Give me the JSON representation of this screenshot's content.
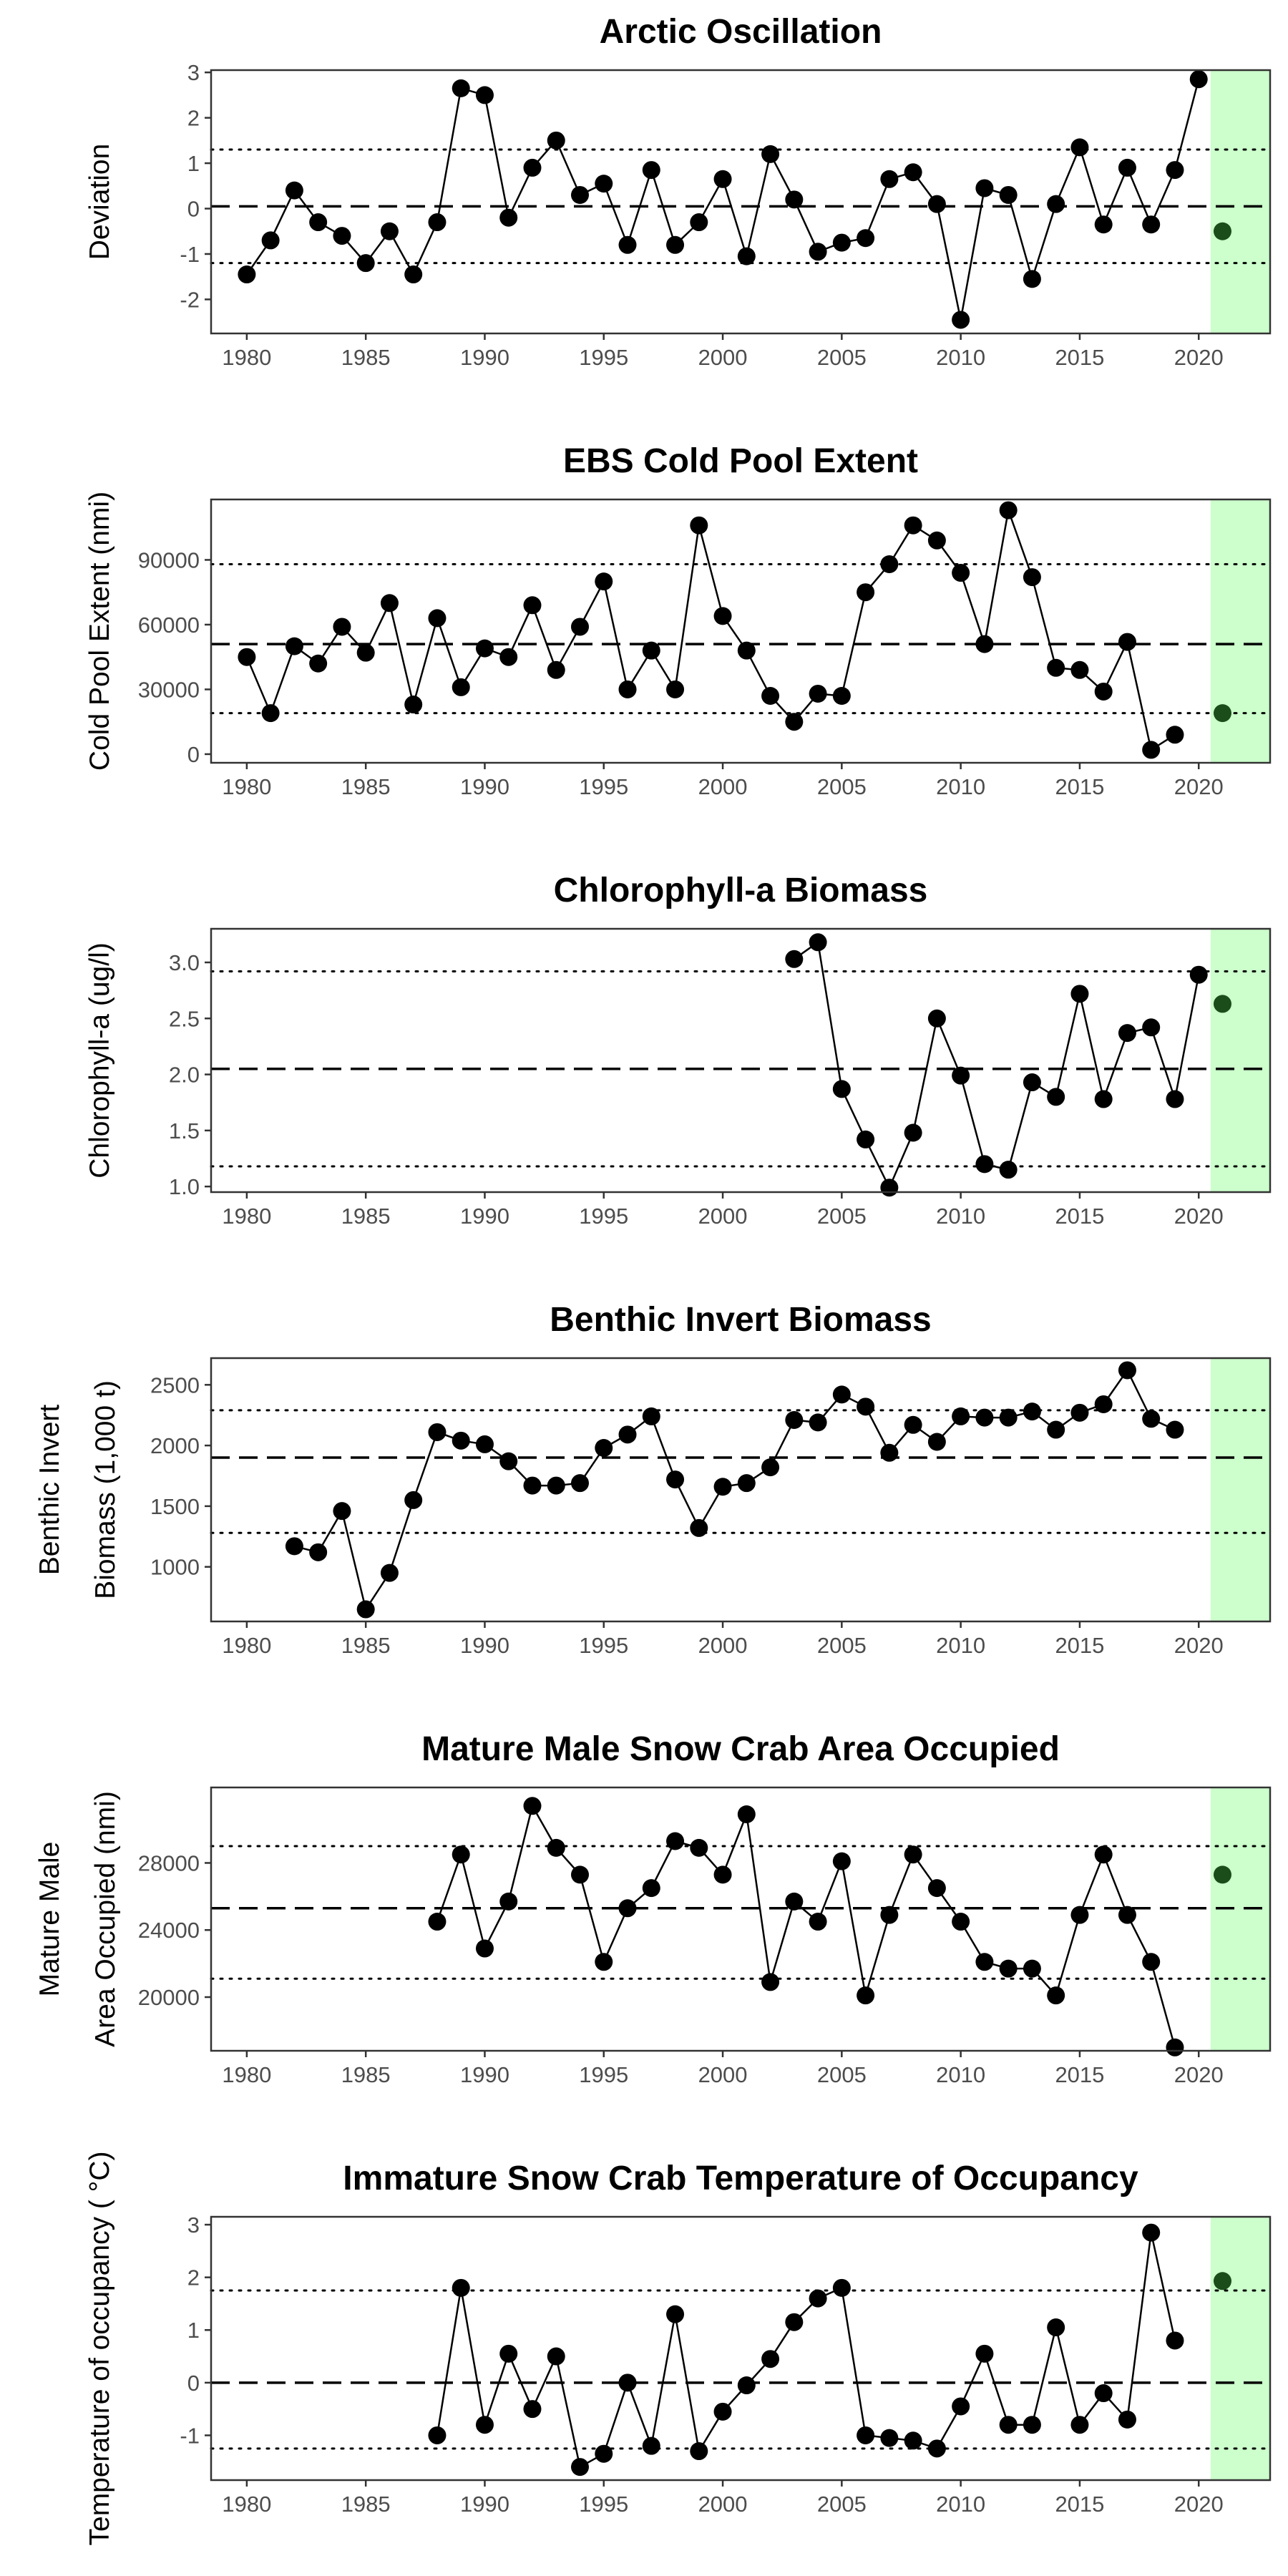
{
  "chart_data": [
    {
      "type": "line",
      "title": "Arctic Oscillation",
      "xlabel": "",
      "ylabel": [
        "Deviation"
      ],
      "xlim": [
        1978.5,
        2023
      ],
      "ylim": [
        -2.75,
        3.05
      ],
      "xticks": [
        1980,
        1985,
        1990,
        1995,
        2000,
        2005,
        2010,
        2015,
        2020
      ],
      "yticks": [
        -2,
        -1,
        0,
        1,
        2,
        3
      ],
      "ytick_labels": [
        "-2",
        "-1",
        "0",
        "1",
        "2",
        "3"
      ],
      "mean": 0.05,
      "upper_sd": 1.3,
      "lower_sd": -1.2,
      "highlight_x_start": 2020.5,
      "highlight_color": "#ccffcc",
      "point_color": "#000000",
      "highlight_point_color": "#1a4d1a",
      "points": [
        [
          1980,
          -1.45
        ],
        [
          1981,
          -0.7
        ],
        [
          1982,
          0.4
        ],
        [
          1983,
          -0.3
        ],
        [
          1984,
          -0.6
        ],
        [
          1985,
          -1.2
        ],
        [
          1986,
          -0.5
        ],
        [
          1987,
          -1.45
        ],
        [
          1988,
          -0.3
        ],
        [
          1989,
          2.65
        ],
        [
          1990,
          2.5
        ],
        [
          1991,
          -0.2
        ],
        [
          1992,
          0.9
        ],
        [
          1993,
          1.5
        ],
        [
          1994,
          0.3
        ],
        [
          1995,
          0.55
        ],
        [
          1996,
          -0.8
        ],
        [
          1997,
          0.85
        ],
        [
          1998,
          -0.8
        ],
        [
          1999,
          -0.3
        ],
        [
          2000,
          0.65
        ],
        [
          2001,
          -1.05
        ],
        [
          2002,
          1.2
        ],
        [
          2003,
          0.2
        ],
        [
          2004,
          -0.95
        ],
        [
          2005,
          -0.75
        ],
        [
          2006,
          -0.65
        ],
        [
          2007,
          0.65
        ],
        [
          2008,
          0.8
        ],
        [
          2009,
          0.1
        ],
        [
          2010,
          -2.45
        ],
        [
          2011,
          0.45
        ],
        [
          2012,
          0.3
        ],
        [
          2013,
          -1.55
        ],
        [
          2014,
          0.1
        ],
        [
          2015,
          1.35
        ],
        [
          2016,
          -0.35
        ],
        [
          2017,
          0.9
        ],
        [
          2018,
          -0.35
        ],
        [
          2019,
          0.85
        ],
        [
          2020,
          2.85
        ]
      ],
      "highlight_points": [
        [
          2021,
          -0.5
        ]
      ]
    },
    {
      "type": "line",
      "title": "EBS Cold Pool Extent",
      "xlabel": "",
      "ylabel": [
        "Cold Pool Extent (nmi)"
      ],
      "xlim": [
        1978.5,
        2023
      ],
      "ylim": [
        -4000,
        118000
      ],
      "xticks": [
        1980,
        1985,
        1990,
        1995,
        2000,
        2005,
        2010,
        2015,
        2020
      ],
      "yticks": [
        0,
        30000,
        60000,
        90000
      ],
      "ytick_labels": [
        "0",
        "30000",
        "60000",
        "90000"
      ],
      "mean": 51000,
      "upper_sd": 88000,
      "lower_sd": 19000,
      "highlight_x_start": 2020.5,
      "highlight_color": "#ccffcc",
      "point_color": "#000000",
      "highlight_point_color": "#1a4d1a",
      "points": [
        [
          1980,
          45000
        ],
        [
          1981,
          19000
        ],
        [
          1982,
          50000
        ],
        [
          1983,
          42000
        ],
        [
          1984,
          59000
        ],
        [
          1985,
          47000
        ],
        [
          1986,
          70000
        ],
        [
          1987,
          23000
        ],
        [
          1988,
          63000
        ],
        [
          1989,
          31000
        ],
        [
          1990,
          49000
        ],
        [
          1991,
          45000
        ],
        [
          1992,
          69000
        ],
        [
          1993,
          39000
        ],
        [
          1994,
          59000
        ],
        [
          1995,
          80000
        ],
        [
          1996,
          30000
        ],
        [
          1997,
          48000
        ],
        [
          1998,
          30000
        ],
        [
          1999,
          106000
        ],
        [
          2000,
          64000
        ],
        [
          2001,
          48000
        ],
        [
          2002,
          27000
        ],
        [
          2003,
          15000
        ],
        [
          2004,
          28000
        ],
        [
          2005,
          27000
        ],
        [
          2006,
          75000
        ],
        [
          2007,
          88000
        ],
        [
          2008,
          106000
        ],
        [
          2009,
          99000
        ],
        [
          2010,
          84000
        ],
        [
          2011,
          51000
        ],
        [
          2012,
          113000
        ],
        [
          2013,
          82000
        ],
        [
          2014,
          40000
        ],
        [
          2015,
          39000
        ],
        [
          2016,
          29000
        ],
        [
          2017,
          52000
        ],
        [
          2018,
          2000
        ],
        [
          2019,
          9000
        ]
      ],
      "highlight_points": [
        [
          2021,
          19000
        ]
      ]
    },
    {
      "type": "line",
      "title": "Chlorophyll-a Biomass",
      "xlabel": "",
      "ylabel": [
        "Chlorophyll-a (ug/l)"
      ],
      "xlim": [
        1978.5,
        2023
      ],
      "ylim": [
        0.95,
        3.3
      ],
      "xticks": [
        1980,
        1985,
        1990,
        1995,
        2000,
        2005,
        2010,
        2015,
        2020
      ],
      "yticks": [
        1.0,
        1.5,
        2.0,
        2.5,
        3.0
      ],
      "ytick_labels": [
        "1.0",
        "1.5",
        "2.0",
        "2.5",
        "3.0"
      ],
      "mean": 2.05,
      "upper_sd": 2.92,
      "lower_sd": 1.18,
      "highlight_x_start": 2020.5,
      "highlight_color": "#ccffcc",
      "point_color": "#000000",
      "highlight_point_color": "#1a4d1a",
      "points": [
        [
          2003,
          3.03
        ],
        [
          2004,
          3.18
        ],
        [
          2005,
          1.87
        ],
        [
          2006,
          1.42
        ],
        [
          2007,
          0.99
        ],
        [
          2008,
          1.48
        ],
        [
          2009,
          2.5
        ],
        [
          2010,
          1.99
        ],
        [
          2011,
          1.2
        ],
        [
          2012,
          1.15
        ],
        [
          2013,
          1.93
        ],
        [
          2014,
          1.8
        ],
        [
          2015,
          2.72
        ],
        [
          2016,
          1.78
        ],
        [
          2017,
          2.37
        ],
        [
          2018,
          2.42
        ],
        [
          2019,
          1.78
        ],
        [
          2020,
          2.89
        ]
      ],
      "highlight_points": [
        [
          2021,
          2.63
        ]
      ]
    },
    {
      "type": "line",
      "title": "Benthic Invert Biomass",
      "xlabel": "",
      "ylabel": [
        "Benthic Invert",
        "Biomass (1,000 t)"
      ],
      "xlim": [
        1978.5,
        2023
      ],
      "ylim": [
        550,
        2720
      ],
      "xticks": [
        1980,
        1985,
        1990,
        1995,
        2000,
        2005,
        2010,
        2015,
        2020
      ],
      "yticks": [
        1000,
        1500,
        2000,
        2500
      ],
      "ytick_labels": [
        "1000",
        "1500",
        "2000",
        "2500"
      ],
      "mean": 1900,
      "upper_sd": 2290,
      "lower_sd": 1280,
      "highlight_x_start": 2020.5,
      "highlight_color": "#ccffcc",
      "point_color": "#000000",
      "highlight_point_color": "#1a4d1a",
      "points": [
        [
          1982,
          1170
        ],
        [
          1983,
          1120
        ],
        [
          1984,
          1460
        ],
        [
          1985,
          650
        ],
        [
          1986,
          950
        ],
        [
          1987,
          1550
        ],
        [
          1988,
          2110
        ],
        [
          1989,
          2040
        ],
        [
          1990,
          2010
        ],
        [
          1991,
          1870
        ],
        [
          1992,
          1670
        ],
        [
          1993,
          1670
        ],
        [
          1994,
          1690
        ],
        [
          1995,
          1980
        ],
        [
          1996,
          2090
        ],
        [
          1997,
          2240
        ],
        [
          1998,
          1720
        ],
        [
          1999,
          1320
        ],
        [
          2000,
          1660
        ],
        [
          2001,
          1690
        ],
        [
          2002,
          1820
        ],
        [
          2003,
          2210
        ],
        [
          2004,
          2190
        ],
        [
          2005,
          2420
        ],
        [
          2006,
          2320
        ],
        [
          2007,
          1940
        ],
        [
          2008,
          2170
        ],
        [
          2009,
          2030
        ],
        [
          2010,
          2240
        ],
        [
          2011,
          2230
        ],
        [
          2012,
          2230
        ],
        [
          2013,
          2280
        ],
        [
          2014,
          2130
        ],
        [
          2015,
          2270
        ],
        [
          2016,
          2340
        ],
        [
          2017,
          2620
        ],
        [
          2018,
          2220
        ],
        [
          2019,
          2130
        ]
      ],
      "highlight_points": []
    },
    {
      "type": "line",
      "title": "Mature Male Snow Crab Area Occupied",
      "xlabel": "",
      "ylabel": [
        "Mature Male",
        "Area Occupied (nmi)"
      ],
      "xlim": [
        1978.5,
        2023
      ],
      "ylim": [
        16800,
        32500
      ],
      "xticks": [
        1980,
        1985,
        1990,
        1995,
        2000,
        2005,
        2010,
        2015,
        2020
      ],
      "yticks": [
        20000,
        24000,
        28000
      ],
      "ytick_labels": [
        "20000",
        "24000",
        "28000"
      ],
      "mean": 25300,
      "upper_sd": 29000,
      "lower_sd": 21100,
      "highlight_x_start": 2020.5,
      "highlight_color": "#ccffcc",
      "point_color": "#000000",
      "highlight_point_color": "#1a4d1a",
      "points": [
        [
          1988,
          24500
        ],
        [
          1989,
          28500
        ],
        [
          1990,
          22900
        ],
        [
          1991,
          25700
        ],
        [
          1992,
          31400
        ],
        [
          1993,
          28900
        ],
        [
          1994,
          27300
        ],
        [
          1995,
          22100
        ],
        [
          1996,
          25300
        ],
        [
          1997,
          26500
        ],
        [
          1998,
          29300
        ],
        [
          1999,
          28900
        ],
        [
          2000,
          27300
        ],
        [
          2001,
          30900
        ],
        [
          2002,
          20900
        ],
        [
          2003,
          25700
        ],
        [
          2004,
          24500
        ],
        [
          2005,
          28100
        ],
        [
          2006,
          20100
        ],
        [
          2007,
          24900
        ],
        [
          2008,
          28500
        ],
        [
          2009,
          26500
        ],
        [
          2010,
          24500
        ],
        [
          2011,
          22100
        ],
        [
          2012,
          21700
        ],
        [
          2013,
          21700
        ],
        [
          2014,
          20100
        ],
        [
          2015,
          24900
        ],
        [
          2016,
          28500
        ],
        [
          2017,
          24900
        ],
        [
          2018,
          22100
        ],
        [
          2019,
          17000
        ]
      ],
      "highlight_points": [
        [
          2021,
          27300
        ]
      ]
    },
    {
      "type": "line",
      "title": "Immature Snow Crab Temperature of Occupancy",
      "xlabel": "",
      "ylabel": [
        "Temperature of occupancy ( °C)"
      ],
      "xlim": [
        1978.5,
        2023
      ],
      "ylim": [
        -1.85,
        3.15
      ],
      "xticks": [
        1980,
        1985,
        1990,
        1995,
        2000,
        2005,
        2010,
        2015,
        2020
      ],
      "yticks": [
        -1,
        0,
        1,
        2,
        3
      ],
      "ytick_labels": [
        "-1",
        "0",
        "1",
        "2",
        "3"
      ],
      "mean": 0.0,
      "upper_sd": 1.75,
      "lower_sd": -1.25,
      "highlight_x_start": 2020.5,
      "highlight_color": "#ccffcc",
      "point_color": "#000000",
      "highlight_point_color": "#1a4d1a",
      "points": [
        [
          1988,
          -1.0
        ],
        [
          1989,
          1.8
        ],
        [
          1990,
          -0.8
        ],
        [
          1991,
          0.55
        ],
        [
          1992,
          -0.5
        ],
        [
          1993,
          0.5
        ],
        [
          1994,
          -1.6
        ],
        [
          1995,
          -1.35
        ],
        [
          1996,
          0.0
        ],
        [
          1997,
          -1.2
        ],
        [
          1998,
          1.3
        ],
        [
          1999,
          -1.3
        ],
        [
          2000,
          -0.55
        ],
        [
          2001,
          -0.05
        ],
        [
          2002,
          0.45
        ],
        [
          2003,
          1.15
        ],
        [
          2004,
          1.6
        ],
        [
          2005,
          1.8
        ],
        [
          2006,
          -1.0
        ],
        [
          2007,
          -1.05
        ],
        [
          2008,
          -1.1
        ],
        [
          2009,
          -1.25
        ],
        [
          2010,
          -0.45
        ],
        [
          2011,
          0.55
        ],
        [
          2012,
          -0.8
        ],
        [
          2013,
          -0.8
        ],
        [
          2014,
          1.05
        ],
        [
          2015,
          -0.8
        ],
        [
          2016,
          -0.2
        ],
        [
          2017,
          -0.7
        ],
        [
          2018,
          2.85
        ],
        [
          2019,
          0.8
        ]
      ],
      "highlight_points": [
        [
          2021,
          1.93
        ]
      ]
    }
  ]
}
